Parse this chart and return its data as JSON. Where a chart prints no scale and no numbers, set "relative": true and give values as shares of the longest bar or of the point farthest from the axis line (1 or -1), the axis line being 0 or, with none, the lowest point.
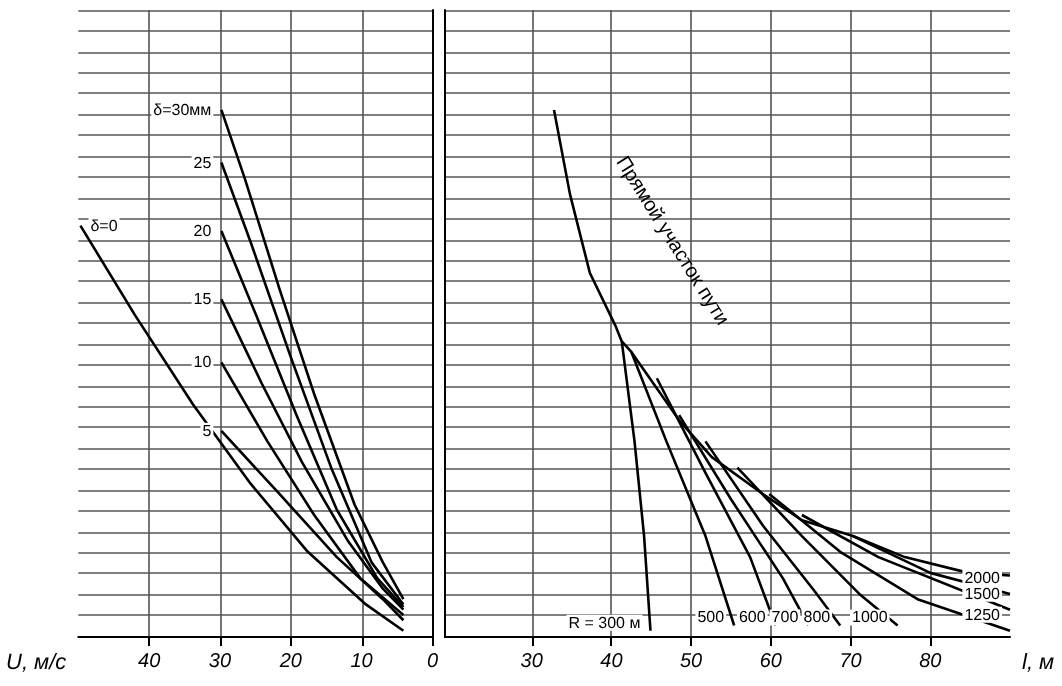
{
  "chart_data": [
    {
      "type": "line",
      "xlabel": "U, м/с",
      "xlim": [
        50,
        0
      ],
      "xticks": [
        40,
        30,
        20,
        10,
        0
      ],
      "relative": true,
      "grid": true,
      "marker": "none",
      "series": [
        {
          "name": "δ=0",
          "color": "#000000",
          "x": [
            49.7,
            42,
            33.8,
            25.7,
            17.6,
            9.4,
            4.1
          ],
          "values": [
            0.78,
            0.61,
            0.44,
            0.29,
            0.16,
            0.06,
            0.01
          ]
        },
        {
          "name": "5",
          "color": "#000000",
          "x": [
            29.8,
            21.6,
            13.5,
            7,
            4.1
          ],
          "values": [
            0.39,
            0.27,
            0.15,
            0.07,
            0.03
          ]
        },
        {
          "name": "10",
          "color": "#000000",
          "x": [
            29.8,
            23.3,
            16.7,
            10.2,
            4.1
          ],
          "values": [
            0.52,
            0.37,
            0.23,
            0.11,
            0.04
          ]
        },
        {
          "name": "15",
          "color": "#000000",
          "x": [
            29.8,
            24.1,
            18.4,
            11.9,
            7,
            4.1
          ],
          "values": [
            0.64,
            0.48,
            0.33,
            0.18,
            0.09,
            0.05
          ]
        },
        {
          "name": "20",
          "color": "#000000",
          "x": [
            29.8,
            24.9,
            19.2,
            13.5,
            7.8,
            4.1
          ],
          "values": [
            0.77,
            0.61,
            0.42,
            0.24,
            0.11,
            0.055
          ]
        },
        {
          "name": "25",
          "color": "#000000",
          "x": [
            29.8,
            25.7,
            20,
            14.3,
            8.6,
            4.1
          ],
          "values": [
            0.9,
            0.75,
            0.53,
            0.32,
            0.14,
            0.06
          ]
        },
        {
          "name": "δ=30мм",
          "color": "#000000",
          "x": [
            29.8,
            26.5,
            21.6,
            16.7,
            11,
            7,
            4.1
          ],
          "values": [
            1.0,
            0.87,
            0.66,
            0.46,
            0.25,
            0.14,
            0.07
          ]
        }
      ]
    },
    {
      "type": "line",
      "xlabel": "l, м",
      "xlim": [
        19,
        90
      ],
      "xticks": [
        30,
        40,
        50,
        60,
        70,
        80
      ],
      "relative": true,
      "grid": true,
      "marker": "none",
      "series": [
        {
          "name": "R = 300 м",
          "color": "#000000",
          "x": [
            32.8,
            34.8,
            37.3,
            40.5,
            41.3,
            42.9,
            44.1,
            44.9
          ],
          "values": [
            1.0,
            0.84,
            0.69,
            0.59,
            0.56,
            0.37,
            0.19,
            0.01
          ]
        },
        {
          "name": "Прямой участок пути",
          "color": "#000000",
          "x": [
            41.3,
            42.5,
            48.5,
            52.6,
            59,
            63.9,
            70.3,
            76.8,
            84.8,
            90
          ],
          "values": [
            0.56,
            0.54,
            0.41,
            0.34,
            0.27,
            0.22,
            0.19,
            0.15,
            0.12,
            0.115
          ]
        },
        {
          "name": "500",
          "color": "#000000",
          "x": [
            42.5,
            46.9,
            51.8,
            55.4
          ],
          "values": [
            0.54,
            0.37,
            0.19,
            0.02
          ]
        },
        {
          "name": "600",
          "color": "#000000",
          "x": [
            45.7,
            51.8,
            57.4,
            60.6
          ],
          "values": [
            0.49,
            0.31,
            0.15,
            0.02
          ]
        },
        {
          "name": "700",
          "color": "#000000",
          "x": [
            48.5,
            55,
            61.5,
            64.7
          ],
          "values": [
            0.42,
            0.26,
            0.11,
            0.02
          ]
        },
        {
          "name": "800",
          "color": "#000000",
          "x": [
            51.8,
            59,
            65.5,
            68.7
          ],
          "values": [
            0.37,
            0.21,
            0.085,
            0.02
          ]
        },
        {
          "name": "1000",
          "color": "#000000",
          "x": [
            55.8,
            63.9,
            71.1,
            75.9
          ],
          "values": [
            0.32,
            0.19,
            0.08,
            0.02
          ]
        },
        {
          "name": "1250",
          "color": "#000000",
          "x": [
            59.8,
            68.7,
            78.4,
            90
          ],
          "values": [
            0.27,
            0.16,
            0.07,
            0.01
          ]
        },
        {
          "name": "1500",
          "color": "#000000",
          "x": [
            63.9,
            73.5,
            90
          ],
          "values": [
            0.23,
            0.15,
            0.05
          ]
        },
        {
          "name": "2000",
          "color": "#000000",
          "x": [
            70.3,
            80,
            90
          ],
          "values": [
            0.19,
            0.12,
            0.08
          ]
        }
      ]
    }
  ]
}
